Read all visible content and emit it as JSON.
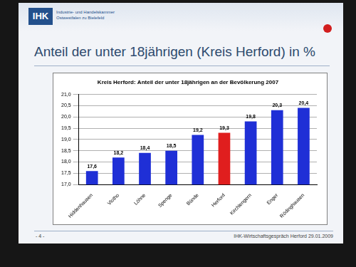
{
  "slide": {
    "logo": "IHK",
    "logo_text": [
      "Industrie- und Handelskammer",
      "Ostwestfalen zu Bielefeld"
    ],
    "title": "Anteil der unter 18jährigen (Kreis Herford) in %",
    "page": "- 4 -",
    "footer": "IHK-Wirtschaftsgespräch Herford 29.01.2009"
  },
  "chart_data": {
    "type": "bar",
    "title": "Kreis Herford: Anteil der unter 18jährigen an der Bevölkerung 2007",
    "categories": [
      "Hiddenhausen",
      "Vlotho",
      "Löhne",
      "Spenge",
      "Bünde",
      "Herford",
      "Kirchlengern",
      "Enger",
      "Rödinghausen"
    ],
    "values": [
      17.6,
      18.2,
      18.4,
      18.5,
      19.2,
      19.3,
      19.8,
      20.3,
      20.4
    ],
    "value_labels": [
      "17,6",
      "18,2",
      "18,4",
      "18,5",
      "19,2",
      "19,3",
      "19,8",
      "20,3",
      "20,4"
    ],
    "data_labels": true,
    "colors": [
      "#1f2fd6",
      "#1f2fd6",
      "#1f2fd6",
      "#1f2fd6",
      "#1f2fd6",
      "#e01e1e",
      "#1f2fd6",
      "#1f2fd6",
      "#1f2fd6"
    ],
    "ylim": [
      17,
      21
    ],
    "yticks": [
      {
        "value": 17,
        "label": "17,0"
      },
      {
        "value": 17.5,
        "label": "17,5"
      },
      {
        "value": 18,
        "label": "18,0"
      },
      {
        "value": 18.5,
        "label": "18,5"
      },
      {
        "value": 19,
        "label": "19,0"
      },
      {
        "value": 19.5,
        "label": "19,5"
      },
      {
        "value": 20,
        "label": "20,0"
      },
      {
        "value": 20.5,
        "label": "20,5"
      },
      {
        "value": 21,
        "label": "21,0"
      }
    ],
    "grid": true
  }
}
